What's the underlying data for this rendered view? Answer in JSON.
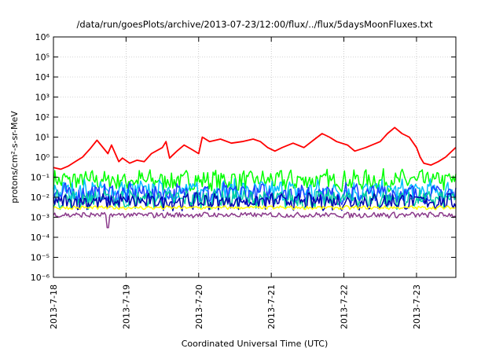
{
  "chart_data": {
    "type": "line",
    "title": "/data/run/goesPlots/archive/2013-07-23/12:00/flux/../flux/5daysMoonFluxes.txt",
    "xlabel": "Coordinated Universal Time (UTC)",
    "ylabel": "protons/cm²-s-sr-MeV",
    "yscale": "log",
    "ylim_exponents": [
      -6,
      6
    ],
    "y_ticks": [
      "10⁻⁶",
      "10⁻⁵",
      "10⁻⁴",
      "10⁻³",
      "10⁻²",
      "10⁻¹",
      "10⁰",
      "10¹",
      "10²",
      "10³",
      "10⁴",
      "10⁵",
      "10⁶"
    ],
    "x_start": "2013-07-18",
    "x_end": "2013-07-23 13:00",
    "x_ticks": [
      "2013-7-18",
      "2013-7-19",
      "2013-7-20",
      "2013-7-21",
      "2013-7-22",
      "2013-7-23"
    ],
    "grid": true,
    "legend": "none",
    "series_colors": [
      "#ff0000",
      "#00ff00",
      "#00bfff",
      "#1f3fff",
      "#0000b0",
      "#00d0a0",
      "#ffff00",
      "#8b3a8b"
    ],
    "series": [
      {
        "key": "red",
        "x": [
          0.0,
          0.1,
          0.2,
          0.3,
          0.4,
          0.5,
          0.6,
          0.75,
          0.8,
          0.9,
          0.95,
          1.05,
          1.15,
          1.25,
          1.35,
          1.5,
          1.55,
          1.6,
          1.7,
          1.8,
          1.9,
          2.0,
          2.05,
          2.15,
          2.3,
          2.45,
          2.6,
          2.75,
          2.85,
          2.95,
          3.05,
          3.15,
          3.3,
          3.45,
          3.6,
          3.7,
          3.8,
          3.9,
          4.05,
          4.15,
          4.3,
          4.5,
          4.6,
          4.7,
          4.8,
          4.9,
          5.0,
          5.05,
          5.1,
          5.2,
          5.3,
          5.4,
          5.54
        ],
        "y": [
          0.3,
          0.25,
          0.35,
          0.6,
          1.0,
          2.5,
          7.0,
          1.5,
          4.0,
          0.6,
          0.9,
          0.5,
          0.7,
          0.6,
          1.5,
          3.0,
          6.0,
          0.9,
          2.0,
          4.0,
          2.5,
          1.5,
          10.0,
          6.0,
          8.0,
          5.0,
          6.0,
          8.0,
          6.0,
          3.0,
          2.0,
          3.0,
          5.0,
          3.0,
          8.0,
          15.0,
          10.0,
          6.0,
          4.0,
          2.0,
          3.0,
          6.0,
          15.0,
          30.0,
          15.0,
          10.0,
          3.0,
          1.0,
          0.5,
          0.4,
          0.6,
          1.0,
          3.0
        ]
      },
      {
        "key": "green",
        "center": 0.07,
        "spread": 0.45
      },
      {
        "key": "cyan",
        "center": 0.02,
        "spread": 0.5
      },
      {
        "key": "blue",
        "center": 0.015,
        "spread": 0.45
      },
      {
        "key": "navy",
        "center": 0.006,
        "spread": 0.35
      },
      {
        "key": "teal",
        "center": 0.008,
        "spread": 0.4
      },
      {
        "key": "yellow",
        "center": 0.003,
        "spread": 0.08
      },
      {
        "key": "purple",
        "center": 0.0013,
        "spread": 0.12,
        "dip_x": 0.75,
        "dip_y": 0.0003
      }
    ]
  }
}
